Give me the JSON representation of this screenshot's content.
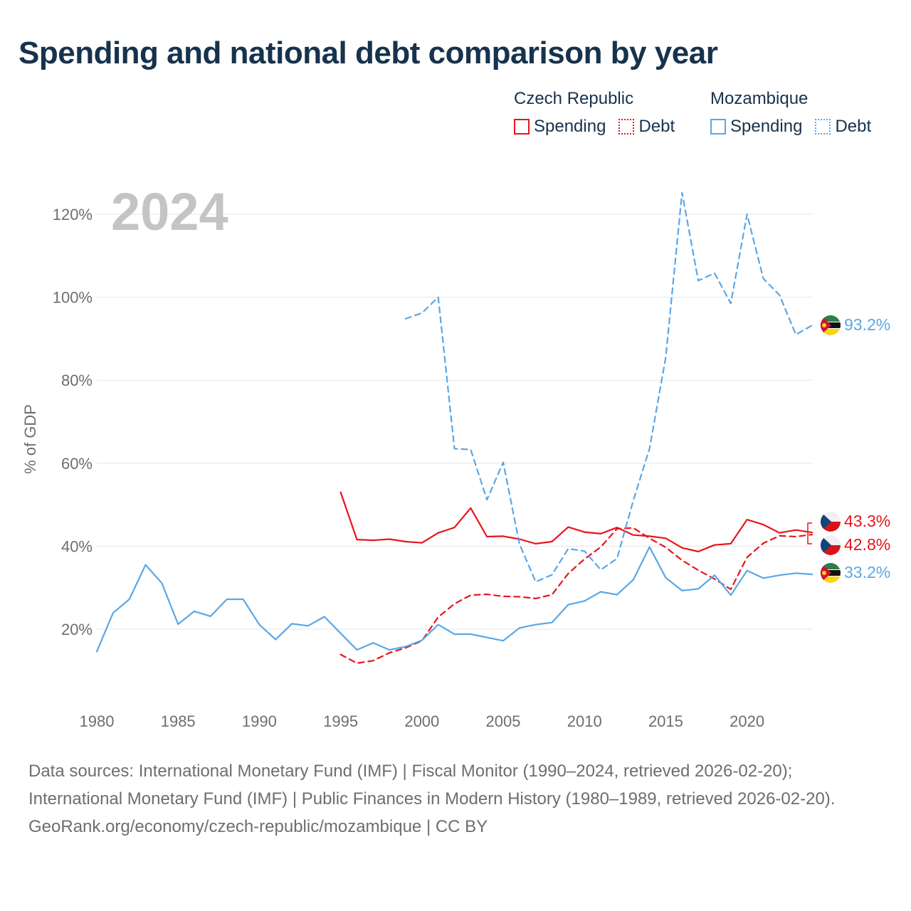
{
  "title": "Spending and national debt comparison by year",
  "legend": {
    "groups": [
      {
        "name": "Czech Republic",
        "color": "#e8141c",
        "items": [
          {
            "label": "Spending",
            "style": "solid"
          },
          {
            "label": "Debt",
            "style": "dotted"
          }
        ]
      },
      {
        "name": "Mozambique",
        "color": "#5aa7e6",
        "items": [
          {
            "label": "Spending",
            "style": "solid"
          },
          {
            "label": "Debt",
            "style": "dotted"
          }
        ]
      }
    ]
  },
  "year_label": "2024",
  "end_labels": {
    "moz_debt": "93.2%",
    "cz_spending": "43.3%",
    "cz_debt": "42.8%",
    "moz_spending": "33.2%"
  },
  "chart_data": {
    "type": "line",
    "title": "Spending and national debt comparison by year",
    "xlabel": "",
    "ylabel": "% of GDP",
    "xlim": [
      1980,
      2024
    ],
    "ylim": [
      5,
      125
    ],
    "xticks": [
      1980,
      1985,
      1990,
      1995,
      2000,
      2005,
      2010,
      2015,
      2020
    ],
    "yticks": [
      20,
      40,
      60,
      80,
      100,
      120
    ],
    "ytick_labels": [
      "20%",
      "40%",
      "60%",
      "80%",
      "100%",
      "120%"
    ],
    "grid": true,
    "series": [
      {
        "name": "Czech Republic Spending",
        "country": "Czech Republic",
        "measure": "Spending",
        "color": "#e8141c",
        "dash": "solid",
        "x": [
          1995,
          1996,
          1997,
          1998,
          1999,
          2000,
          2001,
          2002,
          2003,
          2004,
          2005,
          2006,
          2007,
          2008,
          2009,
          2010,
          2011,
          2012,
          2013,
          2014,
          2015,
          2016,
          2017,
          2018,
          2019,
          2020,
          2021,
          2022,
          2023,
          2024
        ],
        "y": [
          53.0,
          41.6,
          41.4,
          41.7,
          41.1,
          40.8,
          43.2,
          44.5,
          49.2,
          42.3,
          42.4,
          41.7,
          40.6,
          41.1,
          44.6,
          43.4,
          43.0,
          44.5,
          42.7,
          42.4,
          41.9,
          39.6,
          38.7,
          40.3,
          40.6,
          46.4,
          45.2,
          43.2,
          43.9,
          43.3
        ]
      },
      {
        "name": "Czech Republic Debt",
        "country": "Czech Republic",
        "measure": "Debt",
        "color": "#e8141c",
        "dash": "dashed",
        "x": [
          1995,
          1996,
          1997,
          1998,
          1999,
          2000,
          2001,
          2002,
          2003,
          2004,
          2005,
          2006,
          2007,
          2008,
          2009,
          2010,
          2011,
          2012,
          2013,
          2014,
          2015,
          2016,
          2017,
          2018,
          2019,
          2020,
          2021,
          2022,
          2023,
          2024
        ],
        "y": [
          13.9,
          11.8,
          12.4,
          14.3,
          15.5,
          17.2,
          22.9,
          26.1,
          28.2,
          28.4,
          27.9,
          27.8,
          27.4,
          28.3,
          33.4,
          36.9,
          39.8,
          44.2,
          44.4,
          41.9,
          39.7,
          36.6,
          34.2,
          32.1,
          29.6,
          37.3,
          40.7,
          42.5,
          42.3,
          42.8
        ]
      },
      {
        "name": "Mozambique Spending",
        "country": "Mozambique",
        "measure": "Spending",
        "color": "#5aa7e6",
        "dash": "solid",
        "x": [
          1980,
          1981,
          1982,
          1983,
          1984,
          1985,
          1986,
          1987,
          1988,
          1989,
          1990,
          1991,
          1992,
          1993,
          1994,
          1995,
          1996,
          1997,
          1998,
          1999,
          2000,
          2001,
          2002,
          2003,
          2004,
          2005,
          2006,
          2007,
          2008,
          2009,
          2010,
          2011,
          2012,
          2013,
          2014,
          2015,
          2016,
          2017,
          2018,
          2019,
          2020,
          2021,
          2022,
          2023,
          2024
        ],
        "y": [
          14.6,
          23.9,
          27.2,
          35.5,
          31.1,
          21.2,
          24.3,
          23.1,
          27.2,
          27.2,
          21.1,
          17.5,
          21.3,
          20.8,
          23.0,
          19.0,
          15.0,
          16.7,
          15.0,
          15.8,
          17.3,
          21.1,
          18.8,
          18.8,
          18.0,
          17.2,
          20.3,
          21.1,
          21.6,
          25.9,
          26.8,
          29.0,
          28.3,
          31.9,
          39.8,
          32.4,
          29.3,
          29.7,
          33.0,
          28.2,
          34.1,
          32.3,
          33.0,
          33.5,
          33.2
        ]
      },
      {
        "name": "Mozambique Debt",
        "country": "Mozambique",
        "measure": "Debt",
        "color": "#5aa7e6",
        "dash": "dashed",
        "x": [
          1999,
          2000,
          2001,
          2002,
          2003,
          2004,
          2005,
          2006,
          2007,
          2008,
          2009,
          2010,
          2011,
          2012,
          2013,
          2014,
          2015,
          2016,
          2017,
          2018,
          2019,
          2020,
          2021,
          2022,
          2023,
          2024
        ],
        "y": [
          94.8,
          96.2,
          100.0,
          63.5,
          63.3,
          51.2,
          60.2,
          40.5,
          31.4,
          33.1,
          39.4,
          38.8,
          34.3,
          37.0,
          51.0,
          63.5,
          85.5,
          125.2,
          104.0,
          105.8,
          98.5,
          120.0,
          104.5,
          100.5,
          91.0,
          93.2
        ]
      }
    ]
  },
  "footer": {
    "sources": "Data sources: International Monetary Fund (IMF) | Fiscal Monitor (1990–2024, retrieved 2026-02-20); International Monetary Fund (IMF) | Public Finances in Modern History (1980–1989, retrieved 2026-02-20).",
    "credit": "GeoRank.org/economy/czech-republic/mozambique | CC BY"
  }
}
